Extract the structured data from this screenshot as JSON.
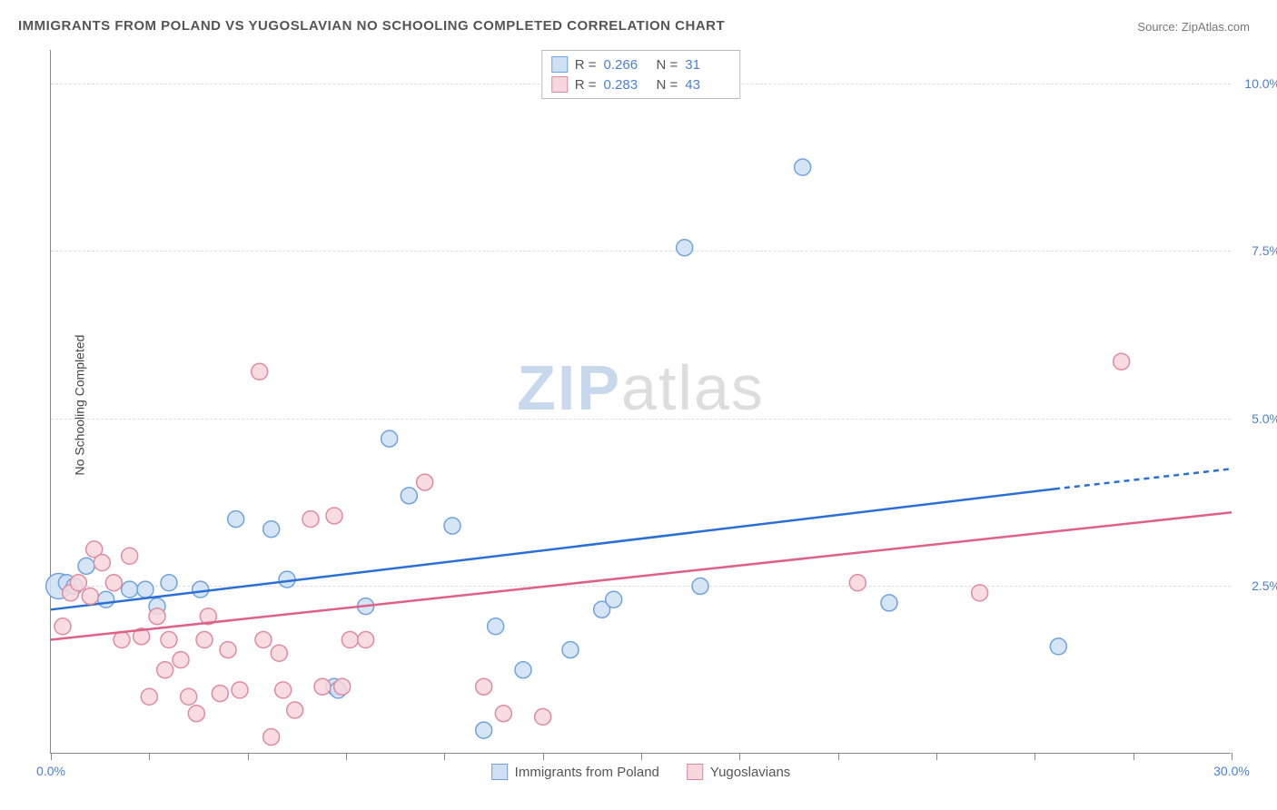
{
  "title": "IMMIGRANTS FROM POLAND VS YUGOSLAVIAN NO SCHOOLING COMPLETED CORRELATION CHART",
  "source_label": "Source:",
  "source_name": "ZipAtlas.com",
  "y_axis_label": "No Schooling Completed",
  "watermark": {
    "part1": "ZIP",
    "part2": "atlas"
  },
  "chart": {
    "type": "scatter",
    "xlim": [
      0,
      30
    ],
    "ylim": [
      0,
      10.5
    ],
    "x_ticks": [
      0,
      2.5,
      5,
      7.5,
      10,
      12.5,
      15,
      17.5,
      20,
      22.5,
      25,
      27.5,
      30
    ],
    "x_tick_labels": {
      "0": "0.0%",
      "30": "30.0%"
    },
    "y_gridlines": [
      2.5,
      5.0,
      7.5,
      10.0
    ],
    "y_tick_labels": {
      "2.5": "2.5%",
      "5.0": "5.0%",
      "7.5": "7.5%",
      "10.0": "10.0%"
    },
    "background_color": "#ffffff",
    "grid_color": "#dddddd",
    "axis_color": "#888888",
    "tick_label_color": "#4a7fd6",
    "marker_radius": 9,
    "marker_radius_large": 14,
    "line_width": 2.5,
    "series": [
      {
        "key": "poland",
        "label": "Immigrants from Poland",
        "fill": "#cfe0f5",
        "stroke": "#6fa3de",
        "line_color": "#2a6fd6",
        "r": 0.266,
        "n": 31,
        "trend": {
          "x1": 0,
          "y1": 2.15,
          "x2": 25.5,
          "y2": 3.95,
          "dash_x2": 30,
          "dash_y2": 4.25
        },
        "points": [
          {
            "x": 0.2,
            "y": 2.5,
            "size": "large"
          },
          {
            "x": 0.4,
            "y": 2.55
          },
          {
            "x": 0.6,
            "y": 2.5
          },
          {
            "x": 0.9,
            "y": 2.8
          },
          {
            "x": 1.4,
            "y": 2.3
          },
          {
            "x": 2.0,
            "y": 2.45
          },
          {
            "x": 2.4,
            "y": 2.45
          },
          {
            "x": 2.7,
            "y": 2.2
          },
          {
            "x": 3.0,
            "y": 2.55
          },
          {
            "x": 3.8,
            "y": 2.45
          },
          {
            "x": 4.7,
            "y": 3.5
          },
          {
            "x": 5.6,
            "y": 3.35
          },
          {
            "x": 6.0,
            "y": 2.6
          },
          {
            "x": 7.2,
            "y": 1.0
          },
          {
            "x": 7.3,
            "y": 0.95
          },
          {
            "x": 8.0,
            "y": 2.2
          },
          {
            "x": 8.6,
            "y": 4.7
          },
          {
            "x": 9.1,
            "y": 3.85
          },
          {
            "x": 10.2,
            "y": 3.4
          },
          {
            "x": 11.0,
            "y": 0.35
          },
          {
            "x": 11.3,
            "y": 1.9
          },
          {
            "x": 12.0,
            "y": 1.25
          },
          {
            "x": 13.2,
            "y": 1.55
          },
          {
            "x": 14.0,
            "y": 2.15
          },
          {
            "x": 14.3,
            "y": 2.3
          },
          {
            "x": 16.1,
            "y": 7.55
          },
          {
            "x": 16.5,
            "y": 2.5
          },
          {
            "x": 19.1,
            "y": 8.75
          },
          {
            "x": 21.3,
            "y": 2.25
          },
          {
            "x": 25.6,
            "y": 1.6
          }
        ]
      },
      {
        "key": "yugoslavia",
        "label": "Yugoslavians",
        "fill": "#f7d6dd",
        "stroke": "#e08ba1",
        "line_color": "#e06088",
        "r": 0.283,
        "n": 43,
        "trend": {
          "x1": 0,
          "y1": 1.7,
          "x2": 30,
          "y2": 3.6
        },
        "points": [
          {
            "x": 0.3,
            "y": 1.9
          },
          {
            "x": 0.5,
            "y": 2.4
          },
          {
            "x": 0.7,
            "y": 2.55
          },
          {
            "x": 1.0,
            "y": 2.35
          },
          {
            "x": 1.1,
            "y": 3.05
          },
          {
            "x": 1.3,
            "y": 2.85
          },
          {
            "x": 1.6,
            "y": 2.55
          },
          {
            "x": 1.8,
            "y": 1.7
          },
          {
            "x": 2.0,
            "y": 2.95
          },
          {
            "x": 2.3,
            "y": 1.75
          },
          {
            "x": 2.5,
            "y": 0.85
          },
          {
            "x": 2.7,
            "y": 2.05
          },
          {
            "x": 2.9,
            "y": 1.25
          },
          {
            "x": 3.0,
            "y": 1.7
          },
          {
            "x": 3.3,
            "y": 1.4
          },
          {
            "x": 3.5,
            "y": 0.85
          },
          {
            "x": 3.7,
            "y": 0.6
          },
          {
            "x": 3.9,
            "y": 1.7
          },
          {
            "x": 4.0,
            "y": 2.05
          },
          {
            "x": 4.3,
            "y": 0.9
          },
          {
            "x": 4.5,
            "y": 1.55
          },
          {
            "x": 4.8,
            "y": 0.95
          },
          {
            "x": 5.3,
            "y": 5.7
          },
          {
            "x": 5.4,
            "y": 1.7
          },
          {
            "x": 5.6,
            "y": 0.25
          },
          {
            "x": 5.8,
            "y": 1.5
          },
          {
            "x": 5.9,
            "y": 0.95
          },
          {
            "x": 6.2,
            "y": 0.65
          },
          {
            "x": 6.6,
            "y": 3.5
          },
          {
            "x": 6.9,
            "y": 1.0
          },
          {
            "x": 7.2,
            "y": 3.55
          },
          {
            "x": 7.4,
            "y": 1.0
          },
          {
            "x": 7.6,
            "y": 1.7
          },
          {
            "x": 8.0,
            "y": 1.7
          },
          {
            "x": 9.5,
            "y": 4.05
          },
          {
            "x": 11.0,
            "y": 1.0
          },
          {
            "x": 11.5,
            "y": 0.6
          },
          {
            "x": 12.5,
            "y": 0.55
          },
          {
            "x": 20.5,
            "y": 2.55
          },
          {
            "x": 23.6,
            "y": 2.4
          },
          {
            "x": 27.2,
            "y": 5.85
          }
        ]
      }
    ]
  },
  "legend_top": {
    "r_label": "R =",
    "n_label": "N ="
  }
}
